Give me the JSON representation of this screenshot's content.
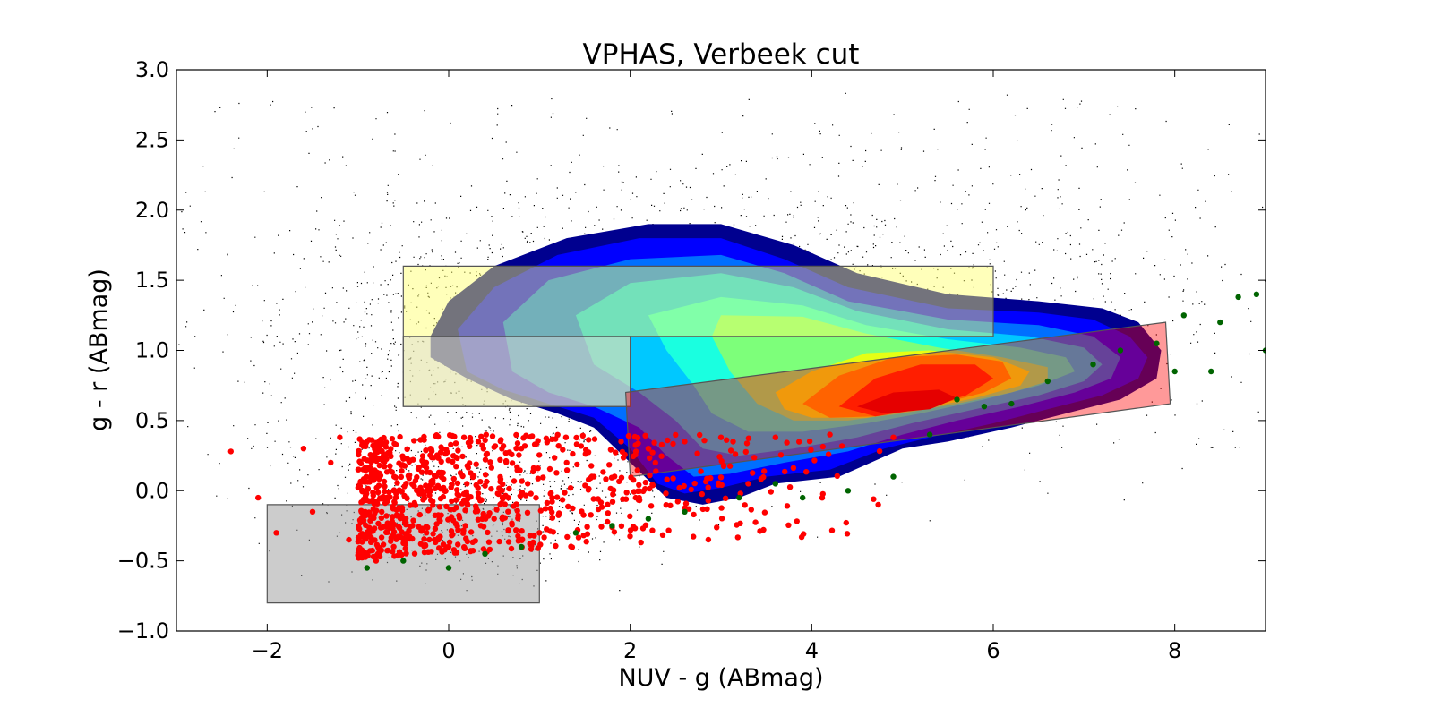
{
  "chart_data": {
    "type": "scatter",
    "title": "VPHAS, Verbeek cut",
    "xlabel": "NUV - g (ABmag)",
    "ylabel": "g - r (ABmag)",
    "xlim": [
      -3,
      9
    ],
    "ylim": [
      -1.0,
      3.0
    ],
    "x_ticks": [
      -2,
      0,
      2,
      4,
      6,
      8
    ],
    "x_tick_labels": [
      "−2",
      "0",
      "2",
      "4",
      "6",
      "8"
    ],
    "y_ticks": [
      -1.0,
      -0.5,
      0.0,
      0.5,
      1.0,
      1.5,
      2.0,
      2.5,
      3.0
    ],
    "y_tick_labels": [
      "−1.0",
      "−0.5",
      "0.0",
      "0.5",
      "1.0",
      "1.5",
      "2.0",
      "2.5",
      "3.0"
    ],
    "grid": false,
    "legend": "none",
    "density_contours": {
      "colormap": "jet",
      "levels": [
        {
          "color": "#00008f",
          "polygon": [
            [
              -0.2,
              1.1
            ],
            [
              0,
              1.35
            ],
            [
              0.5,
              1.6
            ],
            [
              1.3,
              1.8
            ],
            [
              2.2,
              1.9
            ],
            [
              3,
              1.9
            ],
            [
              3.8,
              1.75
            ],
            [
              4.5,
              1.55
            ],
            [
              5.5,
              1.4
            ],
            [
              6.5,
              1.35
            ],
            [
              7.2,
              1.3
            ],
            [
              7.6,
              1.2
            ],
            [
              7.85,
              1.0
            ],
            [
              7.8,
              0.8
            ],
            [
              7.4,
              0.65
            ],
            [
              6.8,
              0.55
            ],
            [
              6.2,
              0.45
            ],
            [
              5.5,
              0.35
            ],
            [
              5,
              0.3
            ],
            [
              4.3,
              0.1
            ],
            [
              3.6,
              0.05
            ],
            [
              3.2,
              -0.05
            ],
            [
              2.8,
              -0.1
            ],
            [
              2.4,
              -0.05
            ],
            [
              2,
              0.2
            ],
            [
              1.6,
              0.45
            ],
            [
              1.2,
              0.55
            ],
            [
              0.7,
              0.65
            ],
            [
              0.2,
              0.8
            ],
            [
              -0.2,
              0.95
            ]
          ]
        },
        {
          "color": "#0000ff",
          "polygon": [
            [
              0.1,
              1.15
            ],
            [
              0.5,
              1.45
            ],
            [
              1.2,
              1.68
            ],
            [
              2.1,
              1.8
            ],
            [
              3,
              1.8
            ],
            [
              3.7,
              1.65
            ],
            [
              4.4,
              1.45
            ],
            [
              5.5,
              1.3
            ],
            [
              6.5,
              1.27
            ],
            [
              7.1,
              1.22
            ],
            [
              7.5,
              1.1
            ],
            [
              7.7,
              0.95
            ],
            [
              7.6,
              0.8
            ],
            [
              7.2,
              0.68
            ],
            [
              6.6,
              0.58
            ],
            [
              6,
              0.48
            ],
            [
              5.3,
              0.38
            ],
            [
              4.8,
              0.3
            ],
            [
              4.2,
              0.15
            ],
            [
              3.5,
              0.1
            ],
            [
              3,
              0.02
            ],
            [
              2.6,
              -0.02
            ],
            [
              2.3,
              0.05
            ],
            [
              2,
              0.3
            ],
            [
              1.6,
              0.52
            ],
            [
              1.1,
              0.62
            ],
            [
              0.6,
              0.72
            ],
            [
              0.2,
              0.85
            ]
          ]
        },
        {
          "color": "#006fff",
          "polygon": [
            [
              0.6,
              1.2
            ],
            [
              1.1,
              1.5
            ],
            [
              2,
              1.65
            ],
            [
              3,
              1.68
            ],
            [
              3.7,
              1.55
            ],
            [
              4.4,
              1.35
            ],
            [
              5.5,
              1.22
            ],
            [
              6.5,
              1.18
            ],
            [
              7.1,
              1.1
            ],
            [
              7.4,
              0.95
            ],
            [
              7.3,
              0.8
            ],
            [
              6.9,
              0.7
            ],
            [
              6.3,
              0.6
            ],
            [
              5.6,
              0.5
            ],
            [
              5,
              0.4
            ],
            [
              4.4,
              0.28
            ],
            [
              3.7,
              0.2
            ],
            [
              3.1,
              0.12
            ],
            [
              2.7,
              0.1
            ],
            [
              2.4,
              0.25
            ],
            [
              2.1,
              0.45
            ],
            [
              1.6,
              0.6
            ],
            [
              1.1,
              0.7
            ],
            [
              0.7,
              0.85
            ]
          ]
        },
        {
          "color": "#00c8ff",
          "polygon": [
            [
              1.4,
              1.25
            ],
            [
              2,
              1.48
            ],
            [
              3,
              1.55
            ],
            [
              3.8,
              1.45
            ],
            [
              4.5,
              1.28
            ],
            [
              5.5,
              1.15
            ],
            [
              6.4,
              1.1
            ],
            [
              7,
              1.02
            ],
            [
              7.2,
              0.9
            ],
            [
              7,
              0.78
            ],
            [
              6.5,
              0.68
            ],
            [
              5.8,
              0.58
            ],
            [
              5.1,
              0.48
            ],
            [
              4.5,
              0.38
            ],
            [
              3.8,
              0.3
            ],
            [
              3.2,
              0.25
            ],
            [
              2.8,
              0.3
            ],
            [
              2.5,
              0.5
            ],
            [
              2.1,
              0.7
            ],
            [
              1.6,
              0.9
            ]
          ]
        },
        {
          "color": "#1affe0",
          "polygon": [
            [
              2.2,
              1.25
            ],
            [
              3,
              1.38
            ],
            [
              3.9,
              1.32
            ],
            [
              4.6,
              1.18
            ],
            [
              5.5,
              1.08
            ],
            [
              6.3,
              1.02
            ],
            [
              6.8,
              0.95
            ],
            [
              6.9,
              0.85
            ],
            [
              6.5,
              0.75
            ],
            [
              5.9,
              0.65
            ],
            [
              5.2,
              0.55
            ],
            [
              4.6,
              0.48
            ],
            [
              3.9,
              0.42
            ],
            [
              3.3,
              0.42
            ],
            [
              2.9,
              0.55
            ],
            [
              2.7,
              0.75
            ],
            [
              2.4,
              1.0
            ]
          ]
        },
        {
          "color": "#7dff7a",
          "polygon": [
            [
              3,
              1.25
            ],
            [
              3.9,
              1.24
            ],
            [
              4.6,
              1.12
            ],
            [
              5.4,
              1.02
            ],
            [
              6.1,
              0.95
            ],
            [
              6.6,
              0.88
            ],
            [
              6.6,
              0.78
            ],
            [
              6.2,
              0.7
            ],
            [
              5.6,
              0.62
            ],
            [
              5,
              0.55
            ],
            [
              4.4,
              0.5
            ],
            [
              3.8,
              0.5
            ],
            [
              3.4,
              0.62
            ],
            [
              3.1,
              0.85
            ],
            [
              2.9,
              1.1
            ]
          ]
        },
        {
          "color": "#e6ff14",
          "polygon": [
            [
              3.6,
              0.7
            ],
            [
              4,
              0.85
            ],
            [
              4.6,
              0.98
            ],
            [
              5.3,
              1.0
            ],
            [
              6,
              0.95
            ],
            [
              6.4,
              0.85
            ],
            [
              6.3,
              0.75
            ],
            [
              5.8,
              0.66
            ],
            [
              5.2,
              0.58
            ],
            [
              4.6,
              0.52
            ],
            [
              4,
              0.52
            ],
            [
              3.7,
              0.58
            ]
          ]
        },
        {
          "color": "#ffa600",
          "polygon": [
            [
              3.9,
              0.62
            ],
            [
              4.3,
              0.82
            ],
            [
              4.9,
              0.95
            ],
            [
              5.6,
              0.97
            ],
            [
              6.1,
              0.92
            ],
            [
              6.2,
              0.8
            ],
            [
              5.9,
              0.7
            ],
            [
              5.3,
              0.6
            ],
            [
              4.7,
              0.53
            ],
            [
              4.2,
              0.52
            ]
          ]
        },
        {
          "color": "#ff3300",
          "polygon": [
            [
              4.3,
              0.6
            ],
            [
              4.7,
              0.8
            ],
            [
              5.2,
              0.9
            ],
            [
              5.8,
              0.9
            ],
            [
              6,
              0.8
            ],
            [
              5.7,
              0.68
            ],
            [
              5.2,
              0.58
            ],
            [
              4.7,
              0.53
            ]
          ]
        },
        {
          "color": "#d40000",
          "polygon": [
            [
              4.5,
              0.6
            ],
            [
              4.9,
              0.7
            ],
            [
              5.4,
              0.72
            ],
            [
              5.6,
              0.66
            ],
            [
              5.3,
              0.58
            ],
            [
              4.8,
              0.55
            ]
          ]
        }
      ]
    },
    "selection_regions": [
      {
        "color": "#ffff66",
        "opacity": 0.45,
        "polygon": [
          [
            -0.5,
            0.6
          ],
          [
            2,
            0.6
          ],
          [
            2,
            1.1
          ],
          [
            6,
            1.1
          ],
          [
            6,
            1.6
          ],
          [
            -0.5,
            1.6
          ]
        ]
      },
      {
        "color": "#d9d9d9",
        "opacity": 0.45,
        "polygon": [
          [
            -0.5,
            1.1
          ],
          [
            2,
            1.1
          ],
          [
            2,
            0.6
          ],
          [
            -0.5,
            0.6
          ]
        ]
      },
      {
        "color": "#ff0000",
        "opacity": 0.4,
        "polygon": [
          [
            1.95,
            0.7
          ],
          [
            7.9,
            1.2
          ],
          [
            7.95,
            0.62
          ],
          [
            2,
            0.1
          ]
        ]
      },
      {
        "color": "#999999",
        "opacity": 0.5,
        "polygon": [
          [
            -2,
            -0.8
          ],
          [
            1,
            -0.8
          ],
          [
            1,
            -0.1
          ],
          [
            -2,
            -0.1
          ]
        ]
      }
    ],
    "series": [
      {
        "color": "#000000",
        "marker": "dot",
        "points": "dense field population, roughly x in [-3, 9], y in [-0.7, 2.9], peak density near x 0..3, y 0.5..1.8"
      },
      {
        "color": "#ff0000",
        "marker": "circle",
        "points": [
          [
            -2.4,
            0.28
          ],
          [
            -2.1,
            -0.05
          ],
          [
            -1.9,
            -0.3
          ],
          [
            -1.6,
            0.3
          ],
          [
            -1.5,
            -0.15
          ],
          [
            -1.3,
            0.2
          ],
          [
            -1.2,
            0.38
          ],
          [
            -1.1,
            -0.35
          ],
          [
            -0.9,
            0.35
          ],
          [
            -0.8,
            -0.5
          ],
          [
            -0.6,
            0.1
          ],
          [
            -0.4,
            -0.25
          ],
          [
            -0.2,
            0.3
          ],
          [
            0,
            -0.4
          ],
          [
            0.2,
            0.05
          ],
          [
            0.5,
            -0.2
          ],
          [
            0.8,
            0.3
          ],
          [
            1,
            -0.3
          ],
          [
            1.3,
            0.2
          ],
          [
            1.6,
            0.1
          ],
          [
            1.9,
            0.35
          ],
          [
            2.2,
            0.3
          ],
          [
            2.6,
            0.35
          ],
          [
            3,
            0.38
          ],
          [
            3.3,
            0.05
          ],
          [
            3.6,
            0.38
          ],
          [
            4.2,
            0.4
          ],
          [
            4.9,
            0.38
          ]
        ]
      },
      {
        "color": "#006400",
        "marker": "circle",
        "points": [
          [
            -0.9,
            -0.55
          ],
          [
            -0.5,
            -0.5
          ],
          [
            0,
            -0.55
          ],
          [
            0.4,
            -0.45
          ],
          [
            0.8,
            -0.4
          ],
          [
            1.4,
            -0.3
          ],
          [
            1.8,
            -0.25
          ],
          [
            2.2,
            -0.2
          ],
          [
            2.6,
            -0.15
          ],
          [
            3.2,
            -0.05
          ],
          [
            3.6,
            0.05
          ],
          [
            3.9,
            -0.05
          ],
          [
            4.4,
            0
          ],
          [
            4.9,
            0.1
          ],
          [
            5.3,
            0.4
          ],
          [
            5.6,
            0.65
          ],
          [
            5.9,
            0.6
          ],
          [
            6.2,
            0.62
          ],
          [
            6.6,
            0.78
          ],
          [
            7.1,
            0.9
          ],
          [
            7.4,
            1.0
          ],
          [
            7.8,
            1.05
          ],
          [
            8,
            0.85
          ],
          [
            8.1,
            1.25
          ],
          [
            8.4,
            0.85
          ],
          [
            8.5,
            1.2
          ],
          [
            8.7,
            1.38
          ],
          [
            8.9,
            1.4
          ],
          [
            9,
            1.0
          ]
        ]
      }
    ]
  }
}
